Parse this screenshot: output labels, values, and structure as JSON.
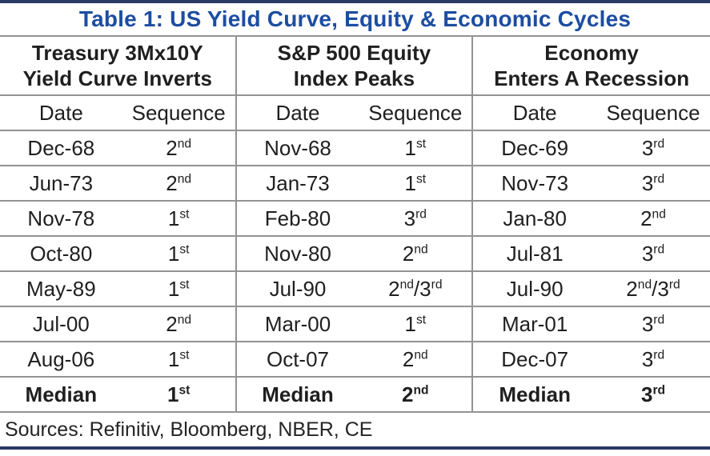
{
  "title": "Table 1: US Yield Curve, Equity & Economic Cycles",
  "colors": {
    "title_blue": "#1c4da1",
    "rule_navy": "#2b3a64",
    "line_gray": "#939393",
    "text": "#1f1f1f",
    "background": "#ffffff"
  },
  "groups": [
    {
      "line1": "Treasury 3Mx10Y",
      "line2": "Yield Curve Inverts"
    },
    {
      "line1": "S&P 500 Equity",
      "line2": "Index Peaks"
    },
    {
      "line1": "Economy",
      "line2": "Enters A Recession"
    }
  ],
  "subheaders": {
    "date": "Date",
    "sequence": "Sequence"
  },
  "rows": [
    {
      "bold": false,
      "cells": [
        {
          "date": "Dec-68",
          "seq": [
            "2",
            "nd"
          ]
        },
        {
          "date": "Nov-68",
          "seq": [
            "1",
            "st"
          ]
        },
        {
          "date": "Dec-69",
          "seq": [
            "3",
            "rd"
          ]
        }
      ]
    },
    {
      "bold": false,
      "cells": [
        {
          "date": "Jun-73",
          "seq": [
            "2",
            "nd"
          ]
        },
        {
          "date": "Jan-73",
          "seq": [
            "1",
            "st"
          ]
        },
        {
          "date": "Nov-73",
          "seq": [
            "3",
            "rd"
          ]
        }
      ]
    },
    {
      "bold": false,
      "cells": [
        {
          "date": "Nov-78",
          "seq": [
            "1",
            "st"
          ]
        },
        {
          "date": "Feb-80",
          "seq": [
            "3",
            "rd"
          ]
        },
        {
          "date": "Jan-80",
          "seq": [
            "2",
            "nd"
          ]
        }
      ]
    },
    {
      "bold": false,
      "cells": [
        {
          "date": "Oct-80",
          "seq": [
            "1",
            "st"
          ]
        },
        {
          "date": "Nov-80",
          "seq": [
            "2",
            "nd"
          ]
        },
        {
          "date": "Jul-81",
          "seq": [
            "3",
            "rd"
          ]
        }
      ]
    },
    {
      "bold": false,
      "cells": [
        {
          "date": "May-89",
          "seq": [
            "1",
            "st"
          ]
        },
        {
          "date": "Jul-90",
          "seq": [
            "2",
            "nd",
            "/3",
            "rd"
          ]
        },
        {
          "date": "Jul-90",
          "seq": [
            "2",
            "nd",
            "/3",
            "rd"
          ]
        }
      ]
    },
    {
      "bold": false,
      "cells": [
        {
          "date": "Jul-00",
          "seq": [
            "2",
            "nd"
          ]
        },
        {
          "date": "Mar-00",
          "seq": [
            "1",
            "st"
          ]
        },
        {
          "date": "Mar-01",
          "seq": [
            "3",
            "rd"
          ]
        }
      ]
    },
    {
      "bold": false,
      "cells": [
        {
          "date": "Aug-06",
          "seq": [
            "1",
            "st"
          ]
        },
        {
          "date": "Oct-07",
          "seq": [
            "2",
            "nd"
          ]
        },
        {
          "date": "Dec-07",
          "seq": [
            "3",
            "rd"
          ]
        }
      ]
    },
    {
      "bold": true,
      "cells": [
        {
          "date": "Median",
          "seq": [
            "1",
            "st"
          ]
        },
        {
          "date": "Median",
          "seq": [
            "2",
            "nd"
          ]
        },
        {
          "date": "Median",
          "seq": [
            "3",
            "rd"
          ]
        }
      ]
    }
  ],
  "sources": "Sources: Refinitiv, Bloomberg, NBER, CE"
}
